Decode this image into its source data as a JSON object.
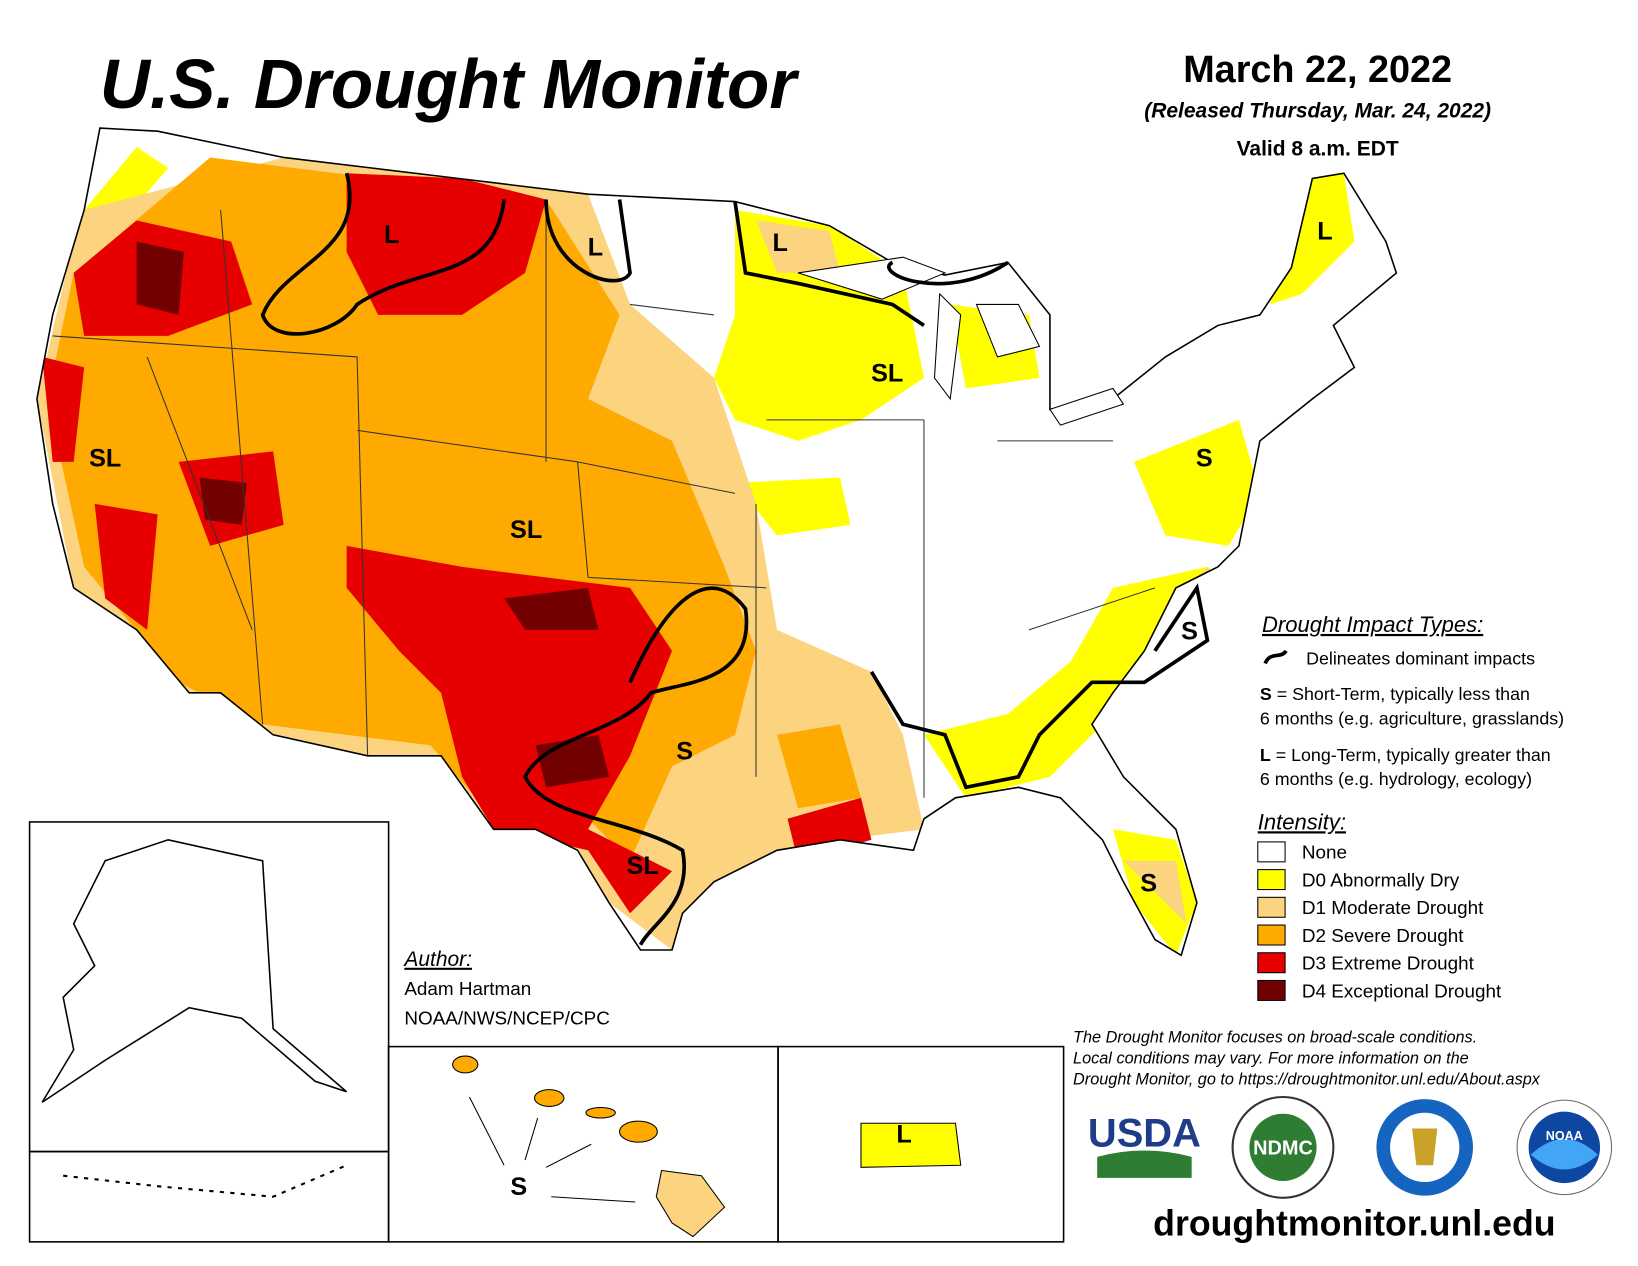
{
  "header": {
    "title": "U.S. Drought Monitor",
    "date": "March 22, 2022",
    "released": "(Released Thursday, Mar. 24, 2022)",
    "valid": "Valid 8 a.m. EDT"
  },
  "impact_types": {
    "title": "Drought Impact Types:",
    "line_label": "Delineates dominant impacts",
    "short": {
      "key": "S",
      "text": "= Short-Term, typically less than",
      "detail": "6 months (e.g. agriculture, grasslands)"
    },
    "long": {
      "key": "L",
      "text": "= Long-Term, typically greater than",
      "detail": "6 months (e.g. hydrology, ecology)"
    }
  },
  "intensity": {
    "title": "Intensity:",
    "levels": [
      {
        "label": "None",
        "color": "#ffffff"
      },
      {
        "label": "D0 Abnormally Dry",
        "color": "#ffff00"
      },
      {
        "label": "D1 Moderate Drought",
        "color": "#fcd37f"
      },
      {
        "label": "D2 Severe Drought",
        "color": "#ffaa00"
      },
      {
        "label": "D3 Extreme Drought",
        "color": "#e60000"
      },
      {
        "label": "D4 Exceptional Drought",
        "color": "#730000"
      }
    ]
  },
  "map_labels": [
    "L",
    "L",
    "L",
    "L",
    "SL",
    "SL",
    "SL",
    "S",
    "S",
    "S",
    "SL",
    "S",
    "L",
    "S"
  ],
  "author": {
    "title": "Author:",
    "name": "Adam Hartman",
    "org": "NOAA/NWS/NCEP/CPC"
  },
  "note": [
    "The Drought Monitor focuses on broad-scale conditions.",
    "Local conditions may vary. For more information on the",
    "Drought Monitor, go to https://droughtmonitor.unl.edu/About.aspx"
  ],
  "logos": [
    "USDA",
    "NDMC",
    "NOAA"
  ],
  "url": "droughtmonitor.unl.edu"
}
